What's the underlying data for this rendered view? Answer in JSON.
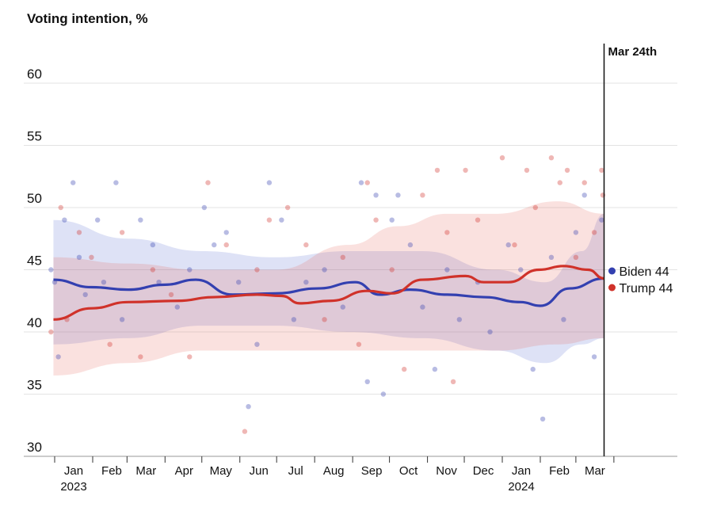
{
  "chart_data": {
    "type": "scatter",
    "title": "Voting intention, %",
    "ylim": [
      30,
      63
    ],
    "yticks": [
      30,
      35,
      40,
      45,
      50,
      55,
      60
    ],
    "x_start": "2023-01-01",
    "x_unit": "days since 2023-01-01",
    "months": [
      {
        "day": 0,
        "label": "Jan",
        "year": "2023"
      },
      {
        "day": 31,
        "label": "Feb"
      },
      {
        "day": 59,
        "label": "Mar"
      },
      {
        "day": 90,
        "label": "Apr"
      },
      {
        "day": 120,
        "label": "May"
      },
      {
        "day": 151,
        "label": "Jun"
      },
      {
        "day": 181,
        "label": "Jul"
      },
      {
        "day": 212,
        "label": "Aug"
      },
      {
        "day": 243,
        "label": "Sep"
      },
      {
        "day": 273,
        "label": "Oct"
      },
      {
        "day": 304,
        "label": "Nov"
      },
      {
        "day": 334,
        "label": "Dec"
      },
      {
        "day": 365,
        "label": "Jan",
        "year": "2024"
      },
      {
        "day": 396,
        "label": "Feb"
      },
      {
        "day": 425,
        "label": "Mar"
      },
      {
        "day": 456,
        "label": ""
      }
    ],
    "marker": {
      "day": 448,
      "label": "Mar 24th"
    },
    "series": [
      {
        "name": "Biden",
        "label": "Biden 44",
        "color": "#3340b0",
        "end_value": 44,
        "trend": [
          [
            -1,
            44.2
          ],
          [
            30,
            43.6
          ],
          [
            60,
            43.4
          ],
          [
            90,
            43.8
          ],
          [
            115,
            44.2
          ],
          [
            145,
            43
          ],
          [
            180,
            43.1
          ],
          [
            215,
            43.5
          ],
          [
            245,
            44
          ],
          [
            265,
            43
          ],
          [
            290,
            43.4
          ],
          [
            320,
            43
          ],
          [
            350,
            42.8
          ],
          [
            380,
            42.4
          ],
          [
            396,
            42.1
          ],
          [
            420,
            43.5
          ],
          [
            448,
            44.3
          ]
        ],
        "band_upper": [
          [
            -1,
            49
          ],
          [
            60,
            47.5
          ],
          [
            120,
            46.5
          ],
          [
            180,
            46
          ],
          [
            240,
            46.5
          ],
          [
            300,
            46.5
          ],
          [
            360,
            45
          ],
          [
            400,
            44
          ],
          [
            430,
            46.5
          ],
          [
            448,
            49.5
          ]
        ],
        "band_lower": [
          [
            -1,
            39
          ],
          [
            60,
            39.5
          ],
          [
            120,
            40.5
          ],
          [
            180,
            40.5
          ],
          [
            240,
            40
          ],
          [
            300,
            39.5
          ],
          [
            360,
            38.5
          ],
          [
            400,
            37.5
          ],
          [
            430,
            39
          ],
          [
            448,
            39.5
          ]
        ],
        "polls": [
          [
            -3,
            45
          ],
          [
            0,
            44
          ],
          [
            3,
            38
          ],
          [
            8,
            49
          ],
          [
            15,
            52
          ],
          [
            20,
            46
          ],
          [
            25,
            43
          ],
          [
            35,
            49
          ],
          [
            40,
            44
          ],
          [
            50,
            52
          ],
          [
            55,
            41
          ],
          [
            70,
            49
          ],
          [
            80,
            47
          ],
          [
            85,
            44
          ],
          [
            100,
            42
          ],
          [
            110,
            45
          ],
          [
            122,
            50
          ],
          [
            130,
            47
          ],
          [
            140,
            48
          ],
          [
            150,
            44
          ],
          [
            158,
            34
          ],
          [
            165,
            39
          ],
          [
            175,
            52
          ],
          [
            185,
            49
          ],
          [
            195,
            41
          ],
          [
            205,
            44
          ],
          [
            220,
            45
          ],
          [
            235,
            42
          ],
          [
            250,
            52
          ],
          [
            255,
            36
          ],
          [
            262,
            51
          ],
          [
            268,
            35
          ],
          [
            275,
            49
          ],
          [
            280,
            51
          ],
          [
            290,
            47
          ],
          [
            300,
            42
          ],
          [
            310,
            37
          ],
          [
            320,
            45
          ],
          [
            330,
            41
          ],
          [
            345,
            44
          ],
          [
            355,
            40
          ],
          [
            370,
            47
          ],
          [
            380,
            45
          ],
          [
            390,
            37
          ],
          [
            398,
            33
          ],
          [
            405,
            46
          ],
          [
            415,
            41
          ],
          [
            425,
            48
          ],
          [
            432,
            51
          ],
          [
            440,
            38
          ],
          [
            446,
            49
          ]
        ]
      },
      {
        "name": "Trump",
        "label": "Trump 44",
        "color": "#d0322a",
        "end_value": 44,
        "trend": [
          [
            -1,
            41
          ],
          [
            30,
            41.9
          ],
          [
            60,
            42.4
          ],
          [
            100,
            42.5
          ],
          [
            130,
            42.8
          ],
          [
            165,
            43
          ],
          [
            185,
            42.9
          ],
          [
            200,
            42.3
          ],
          [
            225,
            42.5
          ],
          [
            255,
            43.3
          ],
          [
            275,
            43.1
          ],
          [
            300,
            44.2
          ],
          [
            335,
            44.5
          ],
          [
            350,
            44
          ],
          [
            370,
            44
          ],
          [
            395,
            45
          ],
          [
            415,
            45.3
          ],
          [
            435,
            45
          ],
          [
            448,
            44.3
          ]
        ],
        "band_upper": [
          [
            -1,
            46
          ],
          [
            60,
            45.5
          ],
          [
            120,
            45
          ],
          [
            180,
            45
          ],
          [
            240,
            47
          ],
          [
            280,
            48.5
          ],
          [
            320,
            49.5
          ],
          [
            360,
            49.5
          ],
          [
            410,
            50.5
          ],
          [
            448,
            49.5
          ]
        ],
        "band_lower": [
          [
            -1,
            36.5
          ],
          [
            60,
            37.5
          ],
          [
            120,
            38.5
          ],
          [
            180,
            38.5
          ],
          [
            240,
            38.5
          ],
          [
            300,
            38.5
          ],
          [
            360,
            38.5
          ],
          [
            410,
            39
          ],
          [
            448,
            39.5
          ]
        ],
        "polls": [
          [
            -3,
            40
          ],
          [
            5,
            50
          ],
          [
            10,
            41
          ],
          [
            20,
            48
          ],
          [
            30,
            46
          ],
          [
            45,
            39
          ],
          [
            55,
            48
          ],
          [
            70,
            38
          ],
          [
            80,
            45
          ],
          [
            95,
            43
          ],
          [
            110,
            38
          ],
          [
            125,
            52
          ],
          [
            140,
            47
          ],
          [
            155,
            32
          ],
          [
            165,
            45
          ],
          [
            175,
            49
          ],
          [
            190,
            50
          ],
          [
            205,
            47
          ],
          [
            220,
            41
          ],
          [
            235,
            46
          ],
          [
            248,
            39
          ],
          [
            255,
            52
          ],
          [
            262,
            49
          ],
          [
            275,
            45
          ],
          [
            285,
            37
          ],
          [
            300,
            51
          ],
          [
            312,
            53
          ],
          [
            320,
            48
          ],
          [
            325,
            36
          ],
          [
            335,
            53
          ],
          [
            345,
            49
          ],
          [
            365,
            54
          ],
          [
            375,
            47
          ],
          [
            385,
            53
          ],
          [
            392,
            50
          ],
          [
            405,
            54
          ],
          [
            412,
            52
          ],
          [
            418,
            53
          ],
          [
            425,
            46
          ],
          [
            432,
            52
          ],
          [
            440,
            48
          ],
          [
            446,
            53
          ],
          [
            447,
            51
          ]
        ]
      }
    ]
  }
}
